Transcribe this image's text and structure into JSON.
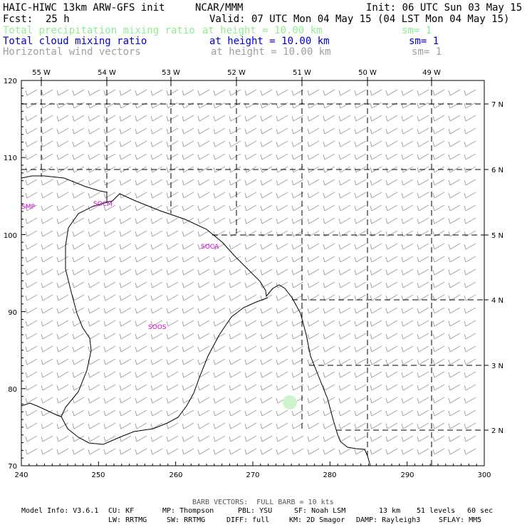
{
  "header": {
    "model": "HAIC-HIWC 13km ARW-GFS init",
    "org": "NCAR/MMM",
    "init": "Init: 06 UTC Sun 03 May 15",
    "fcst_label": "Fcst:",
    "fcst_value": "25 h",
    "valid": "Valid: 07 UTC Mon 04 May 15 (04 LST Mon 04 May 15)",
    "fields": [
      {
        "name": "Total precipitation mixing ratio",
        "level": "at height = 10.00 km",
        "sm": "sm= 1",
        "color": "#90ee90"
      },
      {
        "name": "Total cloud mixing ratio",
        "level": "at height = 10.00 km",
        "sm": "sm= 1",
        "color": "#0000cd"
      },
      {
        "name": "Horizontal wind vectors",
        "level": "at height = 10.00 km",
        "sm": "sm= 1",
        "color": "#a0a0a0"
      }
    ]
  },
  "map": {
    "lon_labels": [
      "55 W",
      "54 W",
      "53 W",
      "52 W",
      "51 W",
      "50 W",
      "49 W"
    ],
    "lat_labels": [
      "7 N",
      "6 N",
      "5 N",
      "4 N",
      "3 N",
      "2 N"
    ],
    "y_ticks": [
      "120",
      "110",
      "100",
      "90",
      "80",
      "70"
    ],
    "x_ticks": [
      "240",
      "250",
      "260",
      "270",
      "280",
      "290",
      "300"
    ],
    "x_range": [
      240,
      300
    ],
    "y_range": [
      70,
      120
    ],
    "place_labels": [
      "SMP",
      "SOCM",
      "SOCA",
      "SOOS"
    ],
    "place_color": "#cc00cc",
    "coast_color": "#000000",
    "barb_color": "#a0a0a0",
    "precip_color": "#ccf5cc"
  },
  "footer": {
    "barb_note": "BARB VECTORS:  FULL BARB = 10 kts",
    "line1": [
      "Model Info: V3.6.1",
      "CU: KF",
      "MP: Thompson",
      "PBL: YSU",
      "SF: Noah LSM",
      "13 km",
      "51 levels",
      "60 sec"
    ],
    "line2": [
      "LW: RRTMG",
      "SW: RRTMG",
      "DIFF: full",
      "KM: 2D Smagor",
      "DAMP: Rayleigh3",
      "SFLAY: MM5"
    ]
  }
}
